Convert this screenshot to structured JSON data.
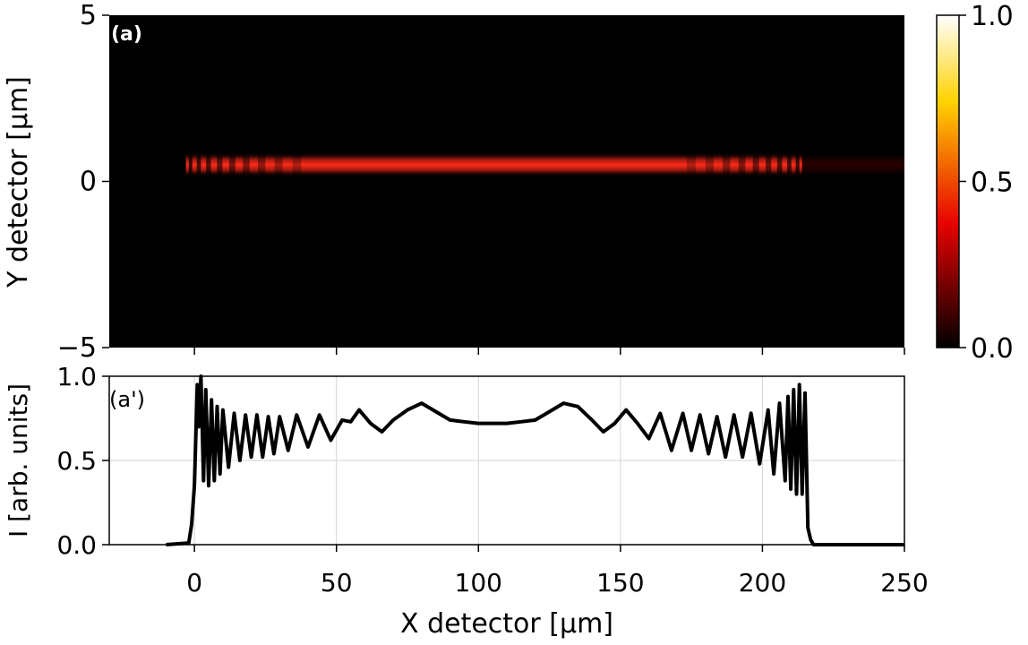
{
  "chart_data": [
    {
      "type": "heatmap",
      "panel_label": "(a)",
      "ylabel": "Y detector [µm]",
      "xlim": [
        -30,
        250
      ],
      "ylim": [
        -5,
        5
      ],
      "y_ticks": [
        -5,
        0,
        5
      ],
      "y_tick_labels": [
        "−5",
        "0",
        "5"
      ],
      "colormap": "hot",
      "colorbar": {
        "range": [
          0.0,
          1.0
        ],
        "ticks": [
          0.0,
          0.5,
          1.0
        ],
        "tick_labels": [
          "0.0",
          "0.5",
          "1.0"
        ]
      },
      "background_color": "#000000",
      "band": {
        "x_range": [
          -3,
          214
        ],
        "y_center": 0.5,
        "y_half_width": 0.3,
        "fringe_zone_um": 40,
        "fringe_period_um": 2.8
      },
      "colors": {
        "band_mid": "#ff2a1a",
        "band_edge": "#d81000",
        "dark": "#000000"
      }
    },
    {
      "type": "line",
      "panel_label": "(a')",
      "xlabel": "X detector [µm]",
      "ylabel": "I [arb. units]",
      "xlim": [
        -30,
        250
      ],
      "ylim": [
        0,
        1
      ],
      "x_ticks": [
        0,
        50,
        100,
        150,
        200,
        250
      ],
      "x_tick_labels": [
        "0",
        "50",
        "100",
        "150",
        "200",
        "250"
      ],
      "y_ticks": [
        0.0,
        0.5,
        1.0
      ],
      "y_tick_labels": [
        "0.0",
        "0.5",
        "1.0"
      ],
      "grid": true,
      "series": [
        {
          "color": "#000000",
          "x": [
            -10,
            -2,
            -1,
            0,
            1,
            1.5,
            2.3,
            3.2,
            4,
            5,
            6,
            7,
            8,
            9,
            10,
            12,
            14,
            16,
            18,
            20,
            22,
            24,
            26,
            28,
            30,
            33,
            36,
            40,
            44,
            48,
            52,
            55,
            58,
            62,
            66,
            70,
            75,
            80,
            85,
            90,
            95,
            100,
            105,
            110,
            115,
            120,
            125,
            130,
            135,
            140,
            144,
            148,
            152,
            156,
            160,
            164,
            168,
            172,
            175,
            178,
            181,
            184,
            187,
            190,
            193,
            196,
            199,
            202,
            204,
            206,
            208,
            209,
            210,
            211,
            212,
            213,
            214,
            215,
            216,
            217,
            218,
            220,
            225,
            230,
            240,
            250
          ],
          "y": [
            0.0,
            0.01,
            0.12,
            0.35,
            0.95,
            0.7,
            1.0,
            0.38,
            0.92,
            0.35,
            0.86,
            0.38,
            0.82,
            0.42,
            0.8,
            0.46,
            0.78,
            0.5,
            0.77,
            0.52,
            0.77,
            0.52,
            0.76,
            0.54,
            0.76,
            0.56,
            0.77,
            0.58,
            0.77,
            0.62,
            0.74,
            0.73,
            0.8,
            0.72,
            0.67,
            0.74,
            0.8,
            0.84,
            0.79,
            0.74,
            0.73,
            0.72,
            0.72,
            0.72,
            0.73,
            0.74,
            0.79,
            0.84,
            0.82,
            0.74,
            0.67,
            0.72,
            0.8,
            0.72,
            0.63,
            0.78,
            0.56,
            0.78,
            0.56,
            0.77,
            0.54,
            0.76,
            0.52,
            0.77,
            0.52,
            0.78,
            0.48,
            0.8,
            0.42,
            0.84,
            0.38,
            0.88,
            0.33,
            0.92,
            0.3,
            0.95,
            0.3,
            0.9,
            0.1,
            0.03,
            0.0,
            0.0,
            0.0,
            0.0,
            0.0,
            0.0
          ]
        }
      ]
    }
  ]
}
